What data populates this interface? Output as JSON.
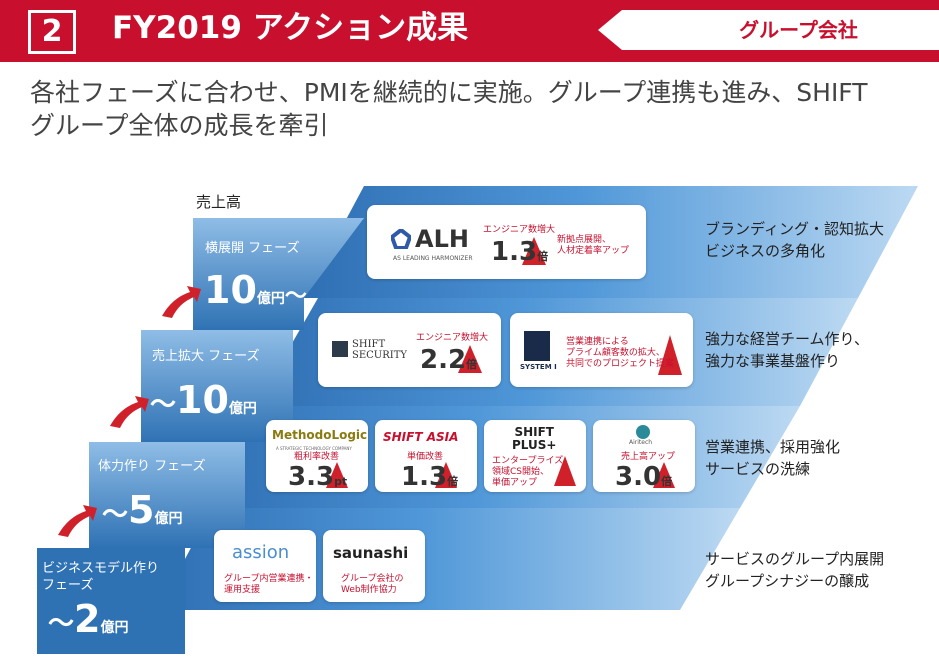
{
  "header": {
    "number": "2",
    "title": "FY2019 アクション成果",
    "tag": "グループ会社"
  },
  "subtitle_line1": "各社フェーズに合わせ、PMIを継続的に実施。グループ連携も進み、SHIFT",
  "subtitle_line2": "グループ全体の成長を牽引",
  "axis_label": "売上高",
  "steps": [
    {
      "label1": "ビジネスモデル作り",
      "label2": "フェーズ",
      "prefix": "〜",
      "value": "2",
      "unit": "億円"
    },
    {
      "label1": "体力作り フェーズ",
      "prefix": "〜",
      "value": "5",
      "unit": "億円"
    },
    {
      "label1": "売上拡大 フェーズ",
      "prefix": "〜",
      "value": "10",
      "unit": "億円"
    },
    {
      "label1": "横展開 フェーズ",
      "value": "10",
      "unit": "億円",
      "suffix": "〜"
    }
  ],
  "rows": {
    "row4": {
      "side1": "ブランディング・認知拡大",
      "side2": "ビジネスの多角化",
      "alh": {
        "logo": "ALH",
        "logo_sub": "AS LEADING HARMONIZER",
        "metric": "エンジニア数増大",
        "value": "1.3",
        "unit": "倍",
        "note1": "新拠点展開、",
        "note2": "人材定着率アップ"
      }
    },
    "row3": {
      "side1": "強力な経営チーム作り、",
      "side2": "強力な事業基盤作り",
      "security": {
        "logo1": "SHIFT",
        "logo2": "SECURITY",
        "metric": "エンジニア数増大",
        "value": "2.2",
        "unit": "倍"
      },
      "system": {
        "logo": "SYSTEM I",
        "note1": "営業連携による",
        "note2": "プライム顧客数の拡大、",
        "note3": "共同でのプロジェクト提案"
      }
    },
    "row2": {
      "side1": "営業連携、採用強化",
      "side2": "サービスの洗練",
      "methodo": {
        "logo": "MethodoLogic",
        "logo_sub": "A STRATEGIC TECHNOLOGY COMPANY",
        "metric": "粗利率改善",
        "value": "3.3",
        "unit": "pt"
      },
      "asia": {
        "logo": "SHIFT ASIA",
        "metric": "単価改善",
        "value": "1.3",
        "unit": "倍"
      },
      "plus": {
        "logo1": "SHIFT",
        "logo2": "PLUS+",
        "note1": "エンタープライズ",
        "note2": "領域CS開始、",
        "note3": "単価アップ"
      },
      "airi": {
        "logo": "Airitech",
        "metric": "売上高アップ",
        "value": "3.0",
        "unit": "倍"
      }
    },
    "row1": {
      "side1": "サービスのグループ内展開",
      "side2": "グループシナジーの醸成",
      "assion": {
        "logo": "assion",
        "note1": "グループ内営業連携・",
        "note2": "運用支援"
      },
      "saunashi": {
        "logo": "saunashi",
        "note1": "グループ会社の",
        "note2": "Web制作協力"
      }
    }
  },
  "colors": {
    "red": "#c8102e",
    "step_dark": "#2f72b4",
    "step_light": "#6ea7d9",
    "band": "#4a90d4"
  }
}
